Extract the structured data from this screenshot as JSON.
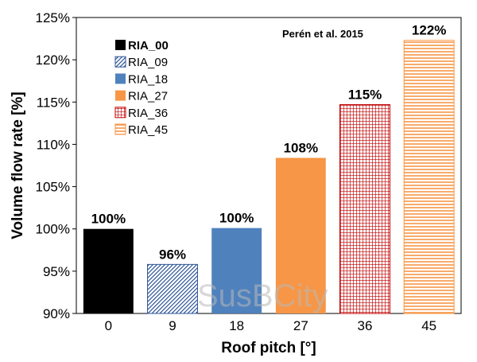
{
  "chart_data": {
    "type": "bar",
    "title": "",
    "xlabel": "Roof pitch [°]",
    "ylabel": "Volume flow rate [%]",
    "ylim": [
      90,
      125
    ],
    "yticks": [
      90,
      95,
      100,
      105,
      110,
      115,
      120,
      125
    ],
    "ytick_suffix": "%",
    "categories": [
      "0",
      "9",
      "18",
      "27",
      "36",
      "45"
    ],
    "values": [
      100,
      95.8,
      100.1,
      108.4,
      114.7,
      122.3
    ],
    "data_labels": [
      "100%",
      "96%",
      "100%",
      "108%",
      "115%",
      "122%"
    ],
    "series_names": [
      "RIA_00",
      "RIA_09",
      "RIA_18",
      "RIA_27",
      "RIA_36",
      "RIA_45"
    ],
    "colors": [
      "#000000",
      "#2f5597",
      "#4f81bd",
      "#f79646",
      "#c00000",
      "#f79646"
    ],
    "fills": [
      "solid",
      "diagonal-hatch",
      "solid",
      "solid",
      "grid",
      "horizontal-lines"
    ],
    "legend_placement": "top-left",
    "grid": false,
    "annotation": "Perén et al. 2015"
  },
  "watermark": "SusBCity"
}
